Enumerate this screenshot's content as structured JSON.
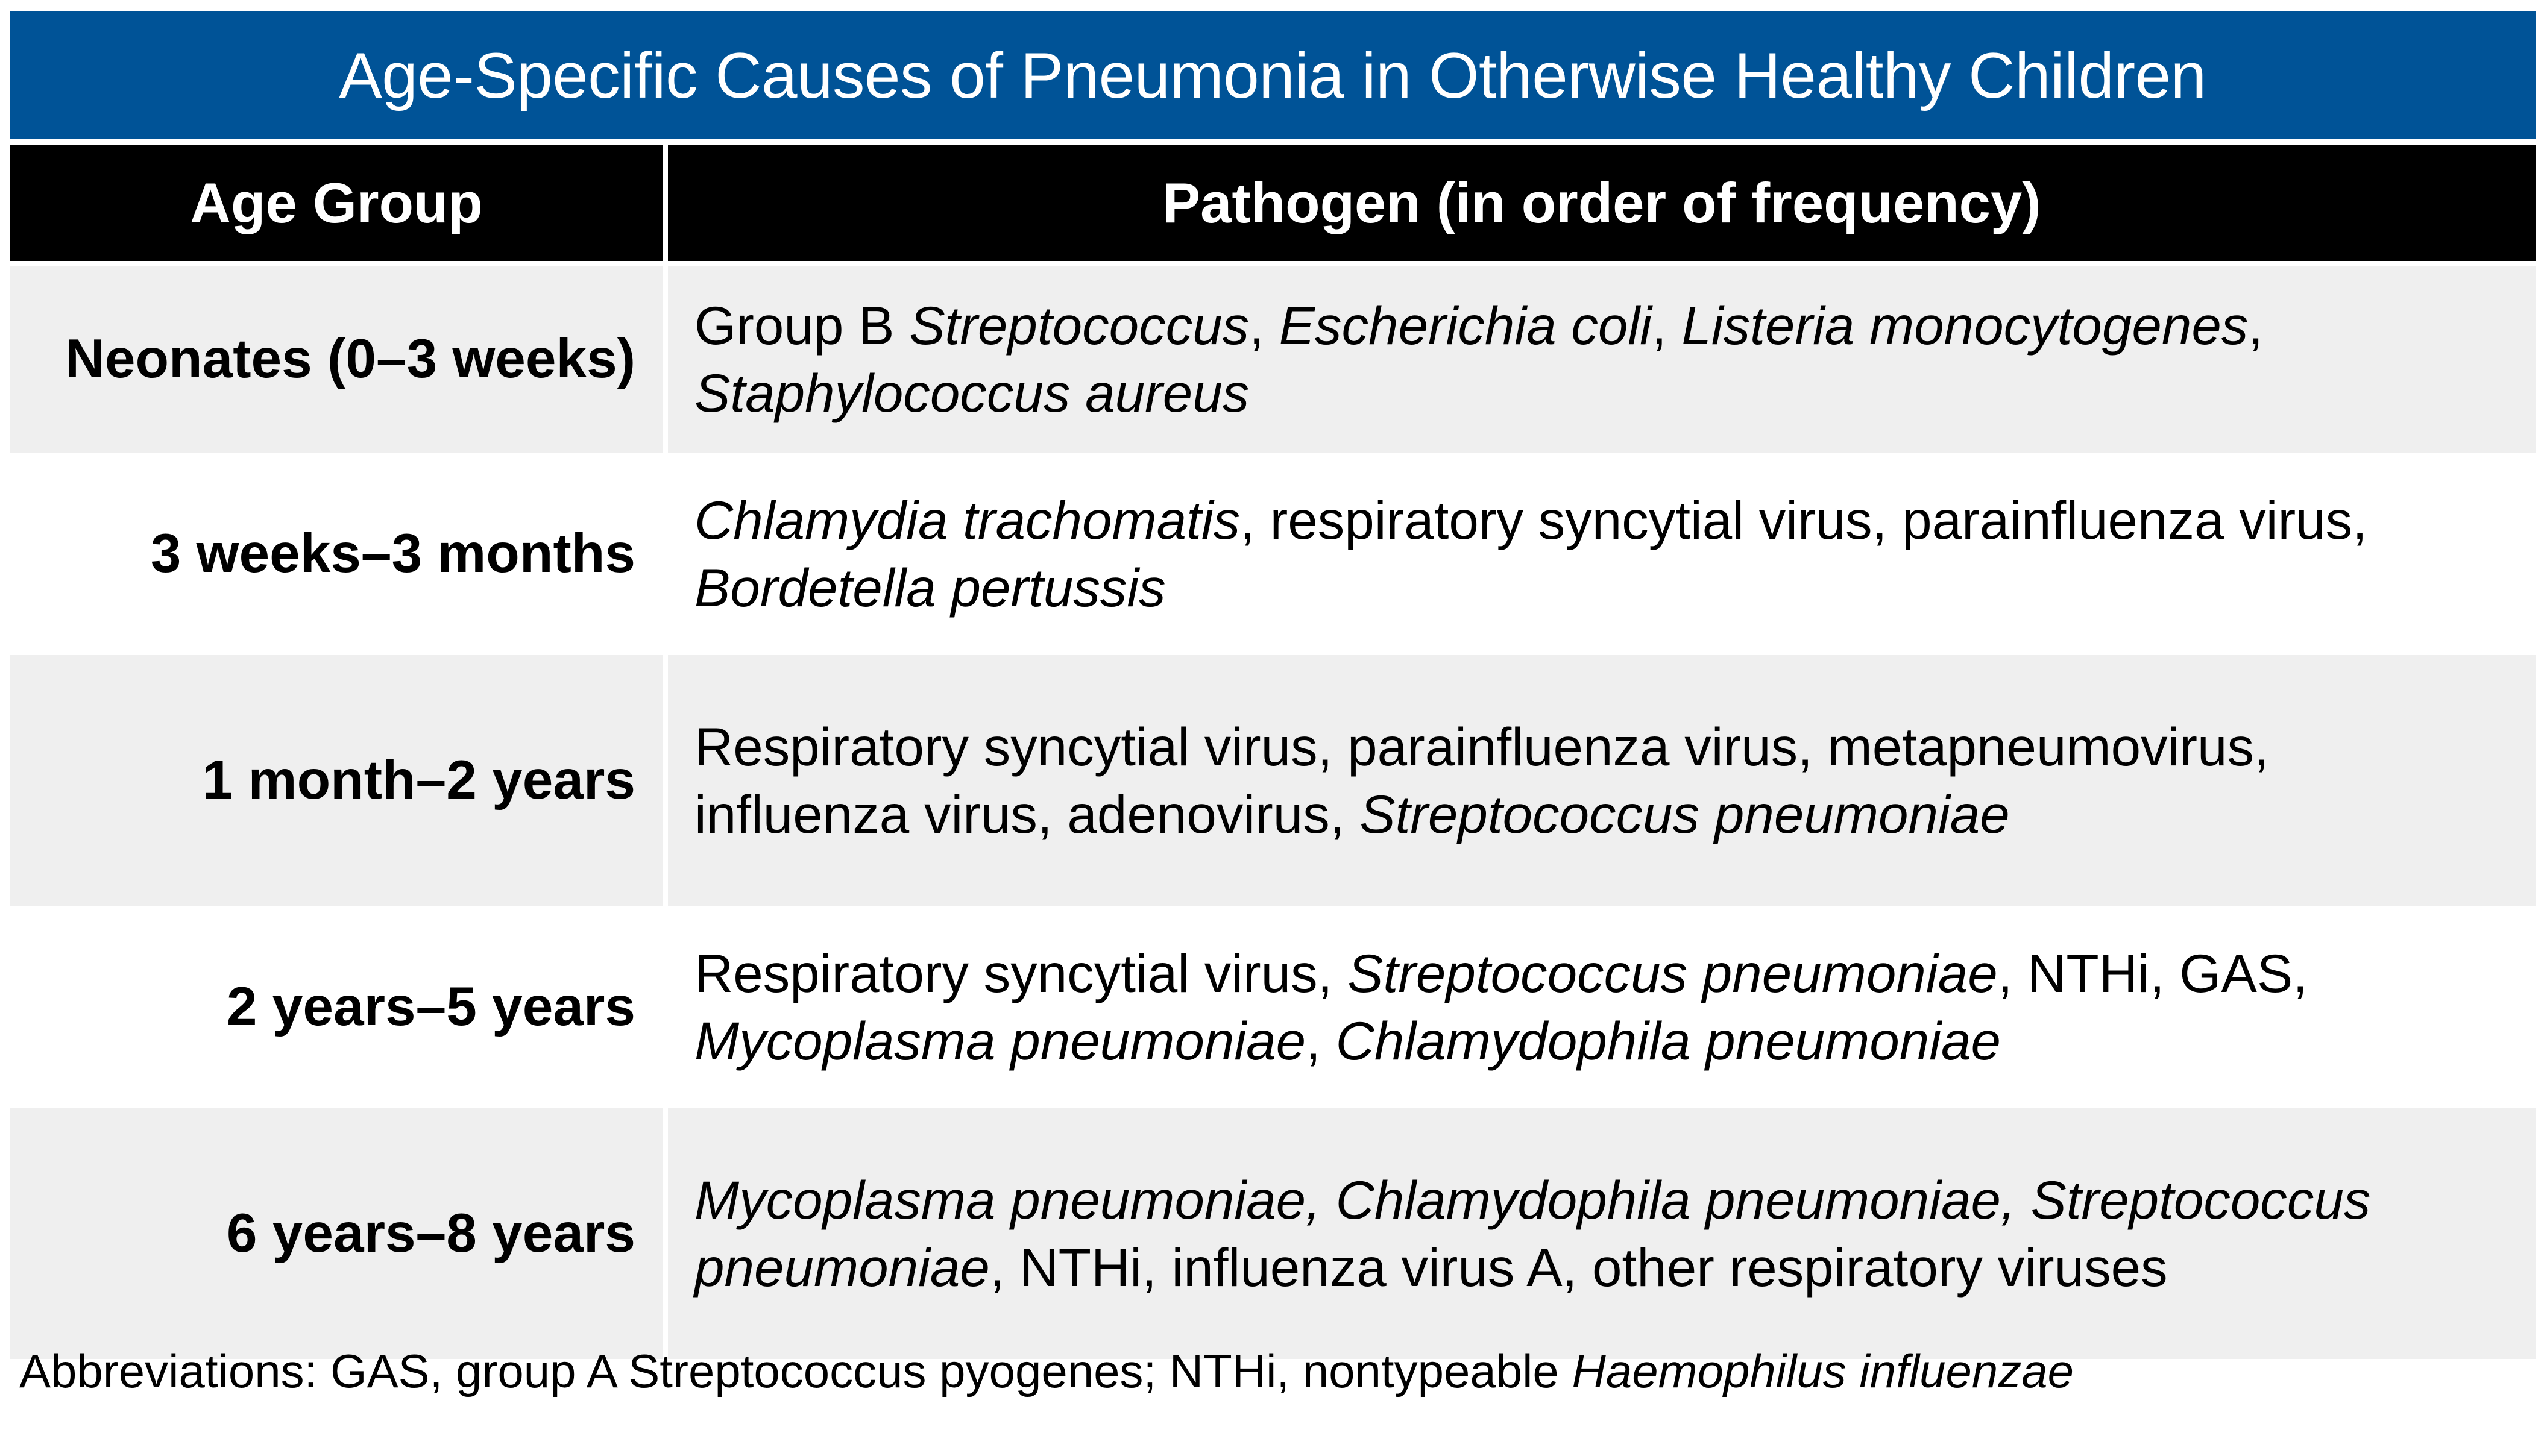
{
  "title": "Age-Specific Causes of Pneumonia in Otherwise Healthy Children",
  "headers": {
    "age_group": "Age Group",
    "pathogen": "Pathogen (in order of frequency)"
  },
  "rows": [
    {
      "age": "Neonates (0–3 weeks)",
      "line1": [
        {
          "t": "Group B "
        },
        {
          "t": "Streptococcus",
          "i": true
        },
        {
          "t": ", "
        },
        {
          "t": "Escherichia coli",
          "i": true
        },
        {
          "t": ", "
        },
        {
          "t": "Listeria monocytogenes",
          "i": true
        },
        {
          "t": ","
        }
      ],
      "line2": [
        {
          "t": "Staphylococcus aureus",
          "i": true
        }
      ]
    },
    {
      "age": "3 weeks–3 months",
      "line1": [
        {
          "t": "Chlamydia trachomatis",
          "i": true
        },
        {
          "t": ", respiratory syncytial virus, parainfluenza virus,"
        }
      ],
      "line2": [
        {
          "t": "Bordetella pertussis",
          "i": true
        }
      ]
    },
    {
      "age": "1 month–2 years",
      "line1": [
        {
          "t": "Respiratory syncytial virus, parainfluenza virus, metapneumovirus,"
        }
      ],
      "line2": [
        {
          "t": "influenza virus, adenovirus, "
        },
        {
          "t": "Streptococcus pneumoniae",
          "i": true
        }
      ]
    },
    {
      "age": "2 years–5 years",
      "line1": [
        {
          "t": "Respiratory syncytial virus, "
        },
        {
          "t": "Streptococcus pneumoniae",
          "i": true
        },
        {
          "t": ", NTHi, GAS,"
        }
      ],
      "line2": [
        {
          "t": "Mycoplasma pneumoniae",
          "i": true
        },
        {
          "t": ", "
        },
        {
          "t": "Chlamydophila pneumoniae",
          "i": true
        }
      ]
    },
    {
      "age": "6 years–8 years",
      "line1": [
        {
          "t": "Mycoplasma pneumoniae, Chlamydophila pneumoniae, Streptococcus",
          "i": true
        }
      ],
      "line2": [
        {
          "t": "pneumoniae",
          "i": true
        },
        {
          "t": ", NTHi, influenza virus A, other respiratory viruses"
        }
      ]
    }
  ],
  "footnote": [
    {
      "t": "Abbreviations: GAS, group A Streptococcus pyogenes; NTHi, nontypeable "
    },
    {
      "t": "Haemophilus influenzae",
      "i": true
    }
  ],
  "colors": {
    "title_bg": "#005397",
    "header_bg": "#000000",
    "shaded_row": "#efefef"
  }
}
